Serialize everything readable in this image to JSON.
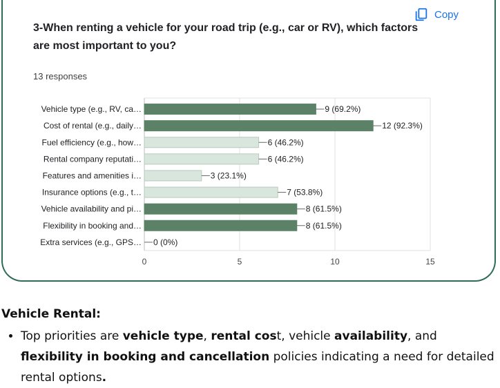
{
  "copy_label": "Copy",
  "question": "3-When renting a vehicle for your road trip (e.g., car or RV), which factors are most important to you?",
  "responses": "13 responses",
  "colors": {
    "dark": "#5b8266",
    "light": "#d9e6dd",
    "border": "#2f6b5a"
  },
  "chart_data": {
    "type": "bar",
    "orientation": "horizontal",
    "categories": [
      "Vehicle type (e.g., RV, ca…",
      "Cost of rental (e.g., daily…",
      "Fuel efficiency (e.g., how…",
      "Rental company reputati…",
      "Features and amenities i…",
      "Insurance options (e.g., t…",
      "Vehicle availability and pi…",
      "Flexibility in booking and…",
      "Extra services (e.g., GPS…"
    ],
    "values": [
      9,
      12,
      6,
      6,
      3,
      7,
      8,
      8,
      0
    ],
    "data_labels": [
      "9 (69.2%)",
      "12 (92.3%)",
      "6 (46.2%)",
      "6 (46.2%)",
      "3 (23.1%)",
      "7 (53.8%)",
      "8 (61.5%)",
      "8 (61.5%)",
      "0 (0%)"
    ],
    "highlight": [
      true,
      true,
      false,
      false,
      false,
      false,
      true,
      true,
      false
    ],
    "xlim": [
      0,
      15
    ],
    "xticks": [
      "0",
      "5",
      "10",
      "15"
    ],
    "grid": true
  },
  "summary": {
    "heading": "Vehicle Rental:",
    "bullet": {
      "t1": "Top priorities are ",
      "b1": "vehicle type",
      "t2": ", ",
      "b2": "rental cos",
      "t3": "t, vehicle ",
      "b3": "availability",
      "t4": ", and ",
      "b4": "flexibility in booking and cancellation",
      "t5": " policies indicating a need for detailed rental options",
      "b5": "."
    }
  }
}
